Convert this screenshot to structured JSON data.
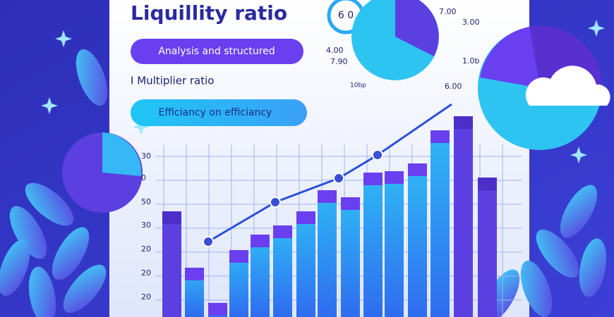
{
  "header": {
    "title": "Liquillity ratio"
  },
  "pills": [
    "Analysis and structured",
    "Efficiancy on efficiancy"
  ],
  "subtitle": "I Multiplier ratio",
  "gauge": {
    "label": "6 0"
  },
  "pie_labels": [
    "7.00",
    "3.00",
    "4.00",
    "7.90",
    "1.0b",
    "10bp",
    "6.00"
  ],
  "axis_labels": [
    "30",
    "0",
    "50",
    "30",
    "20",
    "20",
    "20"
  ]
}
